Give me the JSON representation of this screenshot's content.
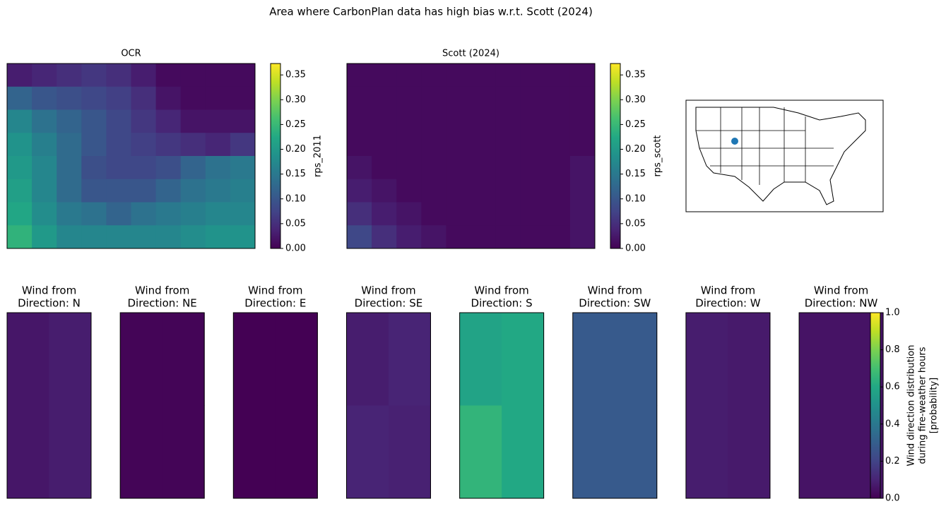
{
  "title": "Area where CarbonPlan data has high bias w.r.t. Scott (2024)",
  "chart_data": [
    {
      "type": "heatmap",
      "title": "OCR",
      "colormap": "viridis",
      "z": [
        [
          0.03,
          0.04,
          0.05,
          0.06,
          0.05,
          0.03,
          0.01,
          0.01,
          0.01,
          0.01
        ],
        [
          0.12,
          0.1,
          0.09,
          0.08,
          0.07,
          0.05,
          0.02,
          0.01,
          0.01,
          0.01
        ],
        [
          0.17,
          0.14,
          0.12,
          0.1,
          0.08,
          0.06,
          0.04,
          0.02,
          0.02,
          0.02
        ],
        [
          0.19,
          0.16,
          0.13,
          0.1,
          0.08,
          0.07,
          0.06,
          0.05,
          0.04,
          0.06
        ],
        [
          0.2,
          0.17,
          0.13,
          0.09,
          0.08,
          0.08,
          0.09,
          0.12,
          0.14,
          0.15
        ],
        [
          0.21,
          0.17,
          0.13,
          0.1,
          0.1,
          0.1,
          0.12,
          0.14,
          0.15,
          0.16
        ],
        [
          0.22,
          0.18,
          0.15,
          0.14,
          0.12,
          0.14,
          0.15,
          0.16,
          0.17,
          0.17
        ],
        [
          0.24,
          0.2,
          0.17,
          0.17,
          0.17,
          0.17,
          0.17,
          0.18,
          0.19,
          0.19
        ]
      ],
      "colorbar": {
        "label": "rps_2011",
        "lim": [
          0,
          0.373
        ],
        "ticks": [
          {
            "value": 0,
            "label": "0.00"
          },
          {
            "value": 0.05,
            "label": "0.05"
          },
          {
            "value": 0.1,
            "label": "0.10"
          },
          {
            "value": 0.15,
            "label": "0.15"
          },
          {
            "value": 0.2,
            "label": "0.20"
          },
          {
            "value": 0.25,
            "label": "0.25"
          },
          {
            "value": 0.3,
            "label": "0.30"
          },
          {
            "value": 0.35,
            "label": "0.35"
          }
        ]
      }
    },
    {
      "type": "heatmap",
      "title": "Scott (2024)",
      "colormap": "viridis",
      "z": [
        [
          0.01,
          0.01,
          0.01,
          0.01,
          0.01,
          0.01,
          0.01,
          0.01,
          0.01,
          0.01
        ],
        [
          0.01,
          0.01,
          0.01,
          0.01,
          0.01,
          0.01,
          0.01,
          0.01,
          0.01,
          0.01
        ],
        [
          0.01,
          0.01,
          0.01,
          0.01,
          0.01,
          0.01,
          0.01,
          0.01,
          0.01,
          0.01
        ],
        [
          0.01,
          0.01,
          0.01,
          0.01,
          0.01,
          0.01,
          0.01,
          0.01,
          0.01,
          0.01
        ],
        [
          0.02,
          0.01,
          0.01,
          0.01,
          0.01,
          0.01,
          0.01,
          0.01,
          0.01,
          0.02
        ],
        [
          0.03,
          0.02,
          0.01,
          0.01,
          0.01,
          0.01,
          0.01,
          0.01,
          0.01,
          0.02
        ],
        [
          0.05,
          0.03,
          0.02,
          0.01,
          0.01,
          0.01,
          0.01,
          0.01,
          0.01,
          0.02
        ],
        [
          0.08,
          0.05,
          0.03,
          0.02,
          0.01,
          0.01,
          0.01,
          0.01,
          0.01,
          0.02
        ]
      ],
      "colorbar": {
        "label": "rps_scott",
        "lim": [
          0,
          0.373
        ],
        "ticks": [
          {
            "value": 0,
            "label": "0.00"
          },
          {
            "value": 0.05,
            "label": "0.05"
          },
          {
            "value": 0.1,
            "label": "0.10"
          },
          {
            "value": 0.15,
            "label": "0.15"
          },
          {
            "value": 0.2,
            "label": "0.20"
          },
          {
            "value": 0.25,
            "label": "0.25"
          },
          {
            "value": 0.3,
            "label": "0.30"
          },
          {
            "value": 0.35,
            "label": "0.35"
          }
        ]
      }
    },
    {
      "type": "heatmap-panels",
      "colormap": "viridis",
      "panels": [
        {
          "title_lines": [
            "Wind from",
            "Direction: N"
          ],
          "z": [
            [
              0.06,
              0.08
            ],
            [
              0.06,
              0.08
            ]
          ]
        },
        {
          "title_lines": [
            "Wind from",
            "Direction: NE"
          ],
          "z": [
            [
              0.01,
              0.01
            ],
            [
              0.01,
              0.01
            ]
          ]
        },
        {
          "title_lines": [
            "Wind from",
            "Direction: E"
          ],
          "z": [
            [
              0.0,
              0.0
            ],
            [
              0.0,
              0.0
            ]
          ]
        },
        {
          "title_lines": [
            "Wind from",
            "Direction: SE"
          ],
          "z": [
            [
              0.08,
              0.1
            ],
            [
              0.1,
              0.09
            ]
          ]
        },
        {
          "title_lines": [
            "Wind from",
            "Direction: S"
          ],
          "z": [
            [
              0.58,
              0.6
            ],
            [
              0.65,
              0.6
            ]
          ]
        },
        {
          "title_lines": [
            "Wind from",
            "Direction: SW"
          ],
          "z": [
            [
              0.28,
              0.28
            ],
            [
              0.28,
              0.28
            ]
          ]
        },
        {
          "title_lines": [
            "Wind from",
            "Direction: W"
          ],
          "z": [
            [
              0.08,
              0.07
            ],
            [
              0.08,
              0.07
            ]
          ]
        },
        {
          "title_lines": [
            "Wind from",
            "Direction: NW"
          ],
          "z": [
            [
              0.05,
              0.05
            ],
            [
              0.05,
              0.05
            ]
          ]
        }
      ],
      "colorbar": {
        "label_lines": [
          "Wind direction distribution",
          "during fire-weather hours",
          "[probability]"
        ],
        "lim": [
          0,
          1
        ],
        "ticks": [
          {
            "value": 0,
            "label": "0.0"
          },
          {
            "value": 0.2,
            "label": "0.2"
          },
          {
            "value": 0.4,
            "label": "0.4"
          },
          {
            "value": 0.6,
            "label": "0.6"
          },
          {
            "value": 0.8,
            "label": "0.8"
          },
          {
            "value": 1,
            "label": "1.0"
          }
        ]
      }
    }
  ]
}
